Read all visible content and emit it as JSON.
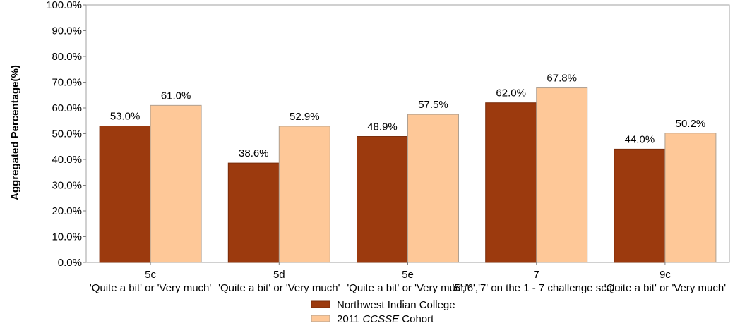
{
  "chart_data": {
    "type": "bar",
    "categories": [
      "5c",
      "5d",
      "5e",
      "7",
      "9c"
    ],
    "category_sublabels": [
      "'Quite a bit' or 'Very much'",
      "'Quite a bit' or 'Very much'",
      "'Quite a bit' or 'Very much'",
      "'5','6','7' on the 1 - 7 challenge scale",
      "'Quite a bit' or 'Very much'"
    ],
    "series": [
      {
        "name": "Northwest Indian College",
        "values": [
          53.0,
          38.6,
          48.9,
          62.0,
          44.0
        ],
        "color": "#9c3a0e"
      },
      {
        "name": "2011 CCSSE Cohort",
        "values": [
          61.0,
          52.9,
          57.5,
          67.8,
          50.2
        ],
        "color": "#fec898"
      }
    ],
    "data_labels": [
      [
        "53.0%",
        "38.6%",
        "48.9%",
        "62.0%",
        "44.0%"
      ],
      [
        "61.0%",
        "52.9%",
        "57.5%",
        "67.8%",
        "50.2%"
      ]
    ],
    "legend_series_2_parts": {
      "prefix": "2011 ",
      "italic": "CCSSE",
      "suffix": " Cohort"
    },
    "ylabel": "Aggregated Percentage(%)",
    "xlabel": "",
    "ylim": [
      0,
      100
    ],
    "yticks": [
      0,
      10,
      20,
      30,
      40,
      50,
      60,
      70,
      80,
      90,
      100
    ],
    "ytick_labels": [
      "0.0%",
      "10.0%",
      "20.0%",
      "30.0%",
      "40.0%",
      "50.0%",
      "60.0%",
      "70.0%",
      "80.0%",
      "90.0%",
      "100.0%"
    ],
    "grid": false,
    "legend_position": "bottom-center",
    "frame_color": "#a0a0a0"
  }
}
